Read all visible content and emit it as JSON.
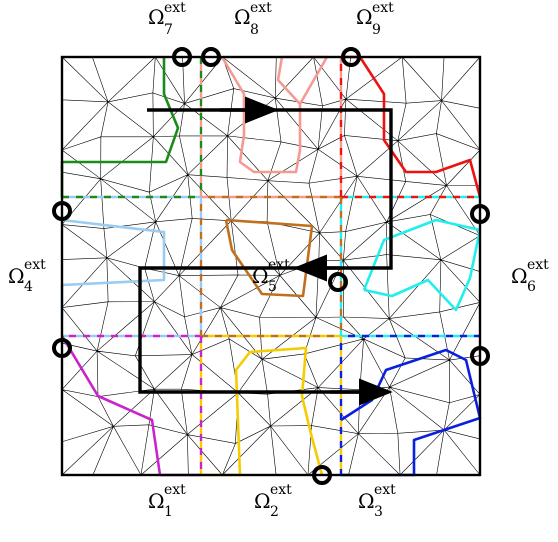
{
  "figure": {
    "palette": {
      "mesh": "#000000",
      "frame": "#000000",
      "path": "#000000",
      "omega1": "#cc22cc",
      "omega2": "#f5cc00",
      "omega3": "#0b1fe0",
      "omega4": "#99ccf0",
      "omega5": "#c0701c",
      "omega6": "#22eeee",
      "omega7": "#1a8a1a",
      "omega8": "#f59a92",
      "omega9": "#ee1111"
    },
    "labels": [
      {
        "id": "omega1",
        "base": "Ω",
        "sup": "ext",
        "sub": "1"
      },
      {
        "id": "omega2",
        "base": "Ω",
        "sup": "ext",
        "sub": "2"
      },
      {
        "id": "omega3",
        "base": "Ω",
        "sup": "ext",
        "sub": "3"
      },
      {
        "id": "omega4",
        "base": "Ω",
        "sup": "ext",
        "sub": "4"
      },
      {
        "id": "omega5",
        "base": "Ω",
        "sup": "ext",
        "sub": "5"
      },
      {
        "id": "omega6",
        "base": "Ω",
        "sup": "ext",
        "sub": "6"
      },
      {
        "id": "omega7",
        "base": "Ω",
        "sup": "ext",
        "sub": "7"
      },
      {
        "id": "omega8",
        "base": "Ω",
        "sup": "ext",
        "sub": "8"
      },
      {
        "id": "omega9",
        "base": "Ω",
        "sup": "ext",
        "sub": "9"
      }
    ],
    "marker_count": 9
  }
}
